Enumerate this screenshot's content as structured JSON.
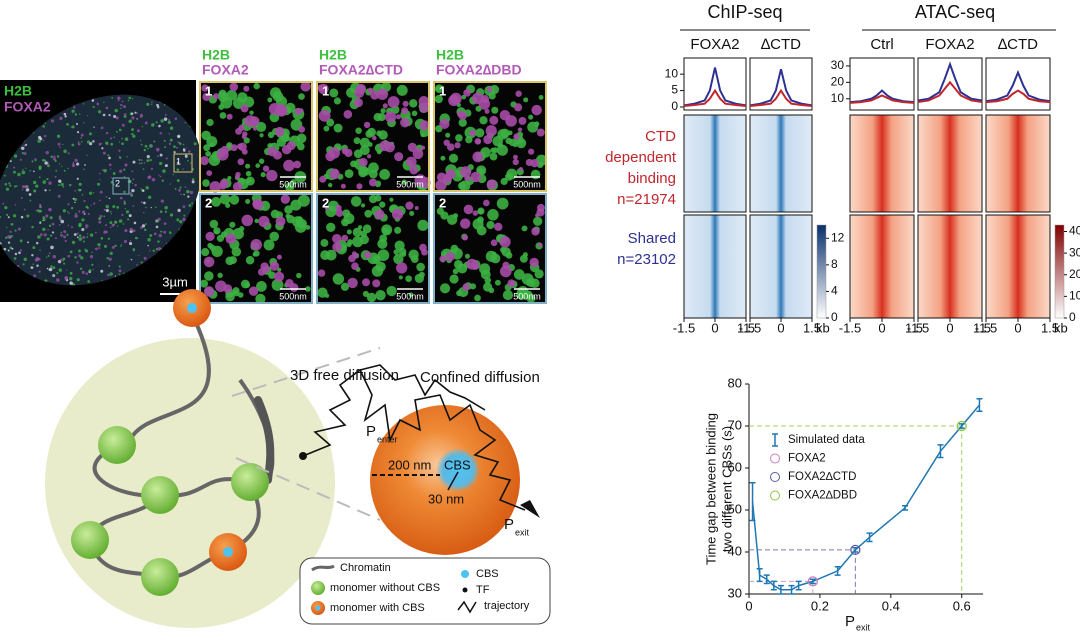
{
  "microscopy": {
    "overview": {
      "channels": [
        "H2B",
        "FOXA2"
      ],
      "scale_bar": "3µm",
      "roi_labels": [
        "1",
        "2"
      ]
    },
    "panels": [
      {
        "channels": [
          "H2B",
          "FOXA2"
        ]
      },
      {
        "channels": [
          "H2B",
          "FOXA2∆CTD"
        ]
      },
      {
        "channels": [
          "H2B",
          "FOXA2∆DBD"
        ]
      }
    ],
    "row_labels": [
      "1",
      "2"
    ],
    "scale_bar": "500nm"
  },
  "genomics": {
    "groups": [
      "ChIP-seq",
      "ATAC-seq"
    ],
    "row_groups": [
      {
        "lines": [
          "CTD",
          "dependent",
          "binding",
          "n=21974"
        ],
        "color": "#c0272d"
      },
      {
        "lines": [
          "Shared",
          "n=23102"
        ],
        "color": "#2e3192"
      }
    ],
    "colorbars": [
      {
        "lim": [
          0,
          14
        ],
        "ticks": [
          0,
          4,
          8,
          12
        ],
        "colors": [
          "#ffffff",
          "#08306b"
        ]
      },
      {
        "lim": [
          0,
          43
        ],
        "ticks": [
          0,
          10,
          20,
          30,
          40
        ],
        "colors": [
          "#ffffff",
          "#7f0000"
        ]
      }
    ]
  },
  "chart_data": [
    {
      "type": "profile",
      "title": "FOXA2",
      "x": [
        -1.5,
        -1,
        -0.5,
        -0.25,
        0,
        0.25,
        0.5,
        1,
        1.5
      ],
      "series": [
        {
          "color": "#2e3192",
          "values": [
            0.5,
            1,
            2,
            5,
            12,
            5,
            2,
            1,
            0.5
          ]
        },
        {
          "color": "#c0272d",
          "values": [
            0.3,
            0.6,
            1,
            2.5,
            5,
            2.5,
            1,
            0.6,
            0.3
          ]
        }
      ],
      "xlim": [
        -1.5,
        1.5
      ],
      "xticks": [
        -1.5,
        0,
        1.5
      ],
      "ylim": [
        0,
        14
      ],
      "yticks": [
        0,
        5,
        10
      ]
    },
    {
      "type": "profile",
      "title": "∆CTD",
      "x": [
        -1.5,
        -1,
        -0.5,
        -0.25,
        0,
        0.25,
        0.5,
        1,
        1.5
      ],
      "series": [
        {
          "color": "#2e3192",
          "values": [
            0.5,
            1,
            2,
            5,
            11.5,
            5,
            2,
            1,
            0.5
          ]
        },
        {
          "color": "#c0272d",
          "values": [
            0.3,
            0.6,
            1,
            2.5,
            5,
            2.5,
            1,
            0.6,
            0.3
          ]
        }
      ],
      "xlim": [
        -1.5,
        1.5
      ],
      "xticks": [
        -1.5,
        0,
        1.5
      ],
      "ylim": [
        0,
        14
      ],
      "xlabel": "kb"
    },
    {
      "type": "profile",
      "title": "Ctrl",
      "x": [
        -1.5,
        -1,
        -0.5,
        -0.25,
        0,
        0.25,
        0.5,
        1,
        1.5
      ],
      "series": [
        {
          "color": "#2e3192",
          "values": [
            8,
            8.5,
            10,
            12,
            15,
            12,
            10,
            8.5,
            8
          ]
        },
        {
          "color": "#c0272d",
          "values": [
            7.5,
            8,
            9,
            10.5,
            12,
            10.5,
            9,
            8,
            7.5
          ]
        }
      ],
      "xlim": [
        -1.5,
        1.5
      ],
      "xticks": [
        -1.5,
        0,
        1.5
      ],
      "ylim": [
        5,
        33
      ],
      "yticks": [
        10,
        20,
        30
      ]
    },
    {
      "type": "profile",
      "title": "FOXA2",
      "x": [
        -1.5,
        -1,
        -0.5,
        -0.25,
        0,
        0.25,
        0.5,
        1,
        1.5
      ],
      "series": [
        {
          "color": "#2e3192",
          "values": [
            9,
            10,
            14,
            22,
            31,
            22,
            14,
            10,
            9
          ]
        },
        {
          "color": "#c0272d",
          "values": [
            8,
            9,
            12,
            16,
            20,
            16,
            12,
            9,
            8
          ]
        }
      ],
      "xlim": [
        -1.5,
        1.5
      ],
      "xticks": [
        -1.5,
        0,
        1.5
      ],
      "ylim": [
        5,
        33
      ]
    },
    {
      "type": "profile",
      "title": "∆CTD",
      "x": [
        -1.5,
        -1,
        -0.5,
        -0.25,
        0,
        0.25,
        0.5,
        1,
        1.5
      ],
      "series": [
        {
          "color": "#2e3192",
          "values": [
            8.5,
            9.5,
            12,
            18,
            26,
            18,
            12,
            9.5,
            8.5
          ]
        },
        {
          "color": "#c0272d",
          "values": [
            8,
            8.5,
            10,
            13,
            15,
            13,
            10,
            8.5,
            8
          ]
        }
      ],
      "xlim": [
        -1.5,
        1.5
      ],
      "xticks": [
        -1.5,
        0,
        1.5
      ],
      "ylim": [
        5,
        33
      ],
      "xlabel": "kb"
    },
    {
      "type": "errorbar-line",
      "xlabel": "P",
      "xlabel_sub": "exit",
      "ylabel": [
        "Time gap between binding",
        "two different CBSs (s)"
      ],
      "xlim": [
        0,
        0.66
      ],
      "xticks": [
        0,
        0.2,
        0.4,
        0.6
      ],
      "ylim": [
        30,
        80
      ],
      "yticks": [
        30,
        40,
        50,
        60,
        70,
        80
      ],
      "series": [
        {
          "name": "Simulated data",
          "color": "#1f78b4",
          "x": [
            0.01,
            0.03,
            0.05,
            0.07,
            0.09,
            0.12,
            0.14,
            0.18,
            0.25,
            0.3,
            0.34,
            0.44,
            0.54,
            0.6,
            0.65
          ],
          "values": [
            52,
            34.5,
            33.5,
            32,
            31,
            31,
            32,
            33,
            35.5,
            40.5,
            43.5,
            50.5,
            64,
            70,
            75
          ],
          "errors": [
            4.5,
            1.5,
            1,
            1,
            1,
            1,
            1,
            0.5,
            1,
            0.5,
            1,
            0.5,
            1.5,
            0.5,
            1.5
          ]
        },
        {
          "name": "FOXA2",
          "color": "#c77dbb",
          "x": [
            0.18
          ],
          "values": [
            33
          ]
        },
        {
          "name": "FOXA2∆CTD",
          "color": "#5a5aa8",
          "x": [
            0.3
          ],
          "values": [
            40.5
          ]
        },
        {
          "name": "FOXA2∆DBD",
          "color": "#8cc63f",
          "x": [
            0.6
          ],
          "values": [
            70
          ]
        }
      ]
    }
  ],
  "diagram": {
    "labels": {
      "free": "3D free diffusion",
      "confined": "Confined diffusion",
      "p_enter": "P",
      "p_enter_sub": "enter",
      "r_outer": "200 nm",
      "cbs": "CBS",
      "r_inner": "30 nm",
      "p_exit": "P",
      "p_exit_sub": "exit"
    },
    "legend": [
      "Chromatin",
      "monomer without CBS",
      "monomer with CBS",
      "CBS",
      "TF",
      "trajectory"
    ]
  }
}
